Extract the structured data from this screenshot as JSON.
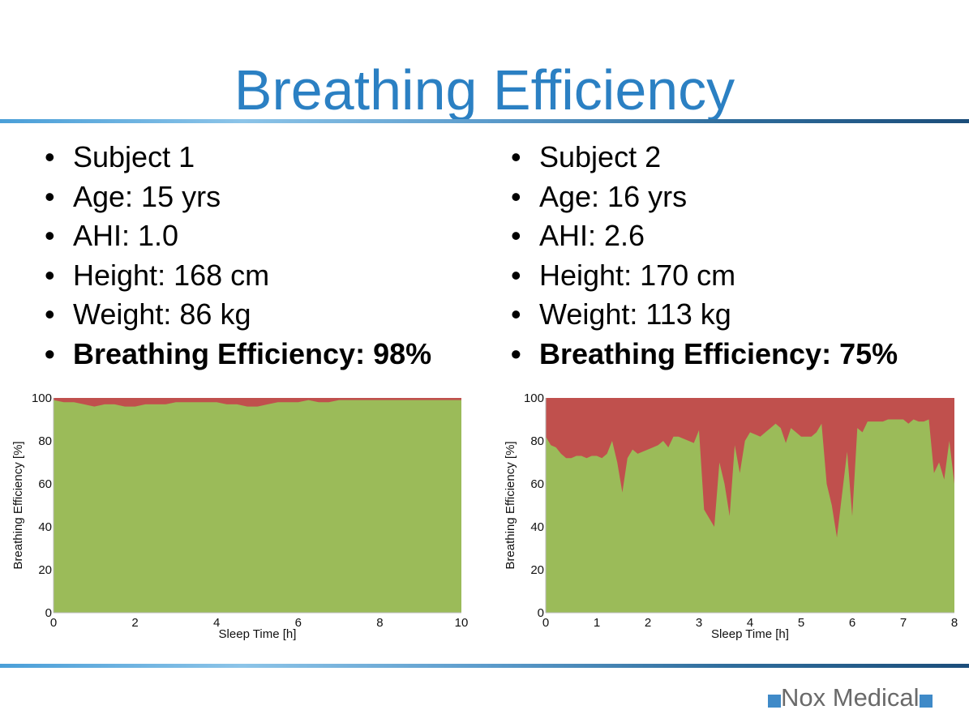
{
  "title": "Breathing Efficiency",
  "subjects": [
    {
      "items": [
        "Subject 1",
        "Age: 15 yrs",
        "AHI: 1.0",
        "Height: 168 cm",
        "Weight: 86 kg"
      ],
      "highlight": "Breathing Efficiency: 98%"
    },
    {
      "items": [
        "Subject 2",
        "Age: 16 yrs",
        "AHI: 2.6",
        "Height: 170 cm",
        "Weight: 113 kg"
      ],
      "highlight": "Breathing Efficiency: 75%"
    }
  ],
  "logo": "Nox Medical",
  "colors": {
    "efficient": "#9bbb59",
    "inefficient": "#c0504d",
    "title": "#2b80c3"
  },
  "chart_data": [
    {
      "type": "area",
      "xlabel": "Sleep Time [h]",
      "ylabel": "Breathing Efficiency [%]",
      "xlim": [
        0,
        10
      ],
      "ylim": [
        0,
        100
      ],
      "xticks": [
        0,
        2,
        4,
        6,
        8,
        10
      ],
      "yticks": [
        0,
        20,
        40,
        60,
        80,
        100
      ],
      "x_step": 0.25,
      "values": [
        99,
        98,
        98,
        97,
        96,
        97,
        97,
        96,
        96,
        97,
        97,
        97,
        98,
        98,
        98,
        98,
        98,
        97,
        97,
        96,
        96,
        97,
        98,
        98,
        98,
        99,
        98,
        98,
        99,
        99,
        99,
        99,
        99,
        99,
        99,
        99,
        99,
        99,
        99,
        99,
        99
      ],
      "series": [
        {
          "name": "efficient",
          "color": "#9bbb59"
        },
        {
          "name": "inefficient",
          "color": "#c0504d"
        }
      ]
    },
    {
      "type": "area",
      "xlabel": "Sleep Time [h]",
      "ylabel": "Breathing Efficiency [%]",
      "xlim": [
        0,
        8
      ],
      "ylim": [
        0,
        100
      ],
      "xticks": [
        0,
        1,
        2,
        3,
        4,
        5,
        6,
        7,
        8
      ],
      "yticks": [
        0,
        20,
        40,
        60,
        80,
        100
      ],
      "x_step": 0.1,
      "values": [
        82,
        78,
        77,
        74,
        72,
        72,
        73,
        73,
        72,
        73,
        73,
        72,
        74,
        80,
        70,
        56,
        72,
        76,
        74,
        75,
        76,
        77,
        78,
        80,
        77,
        82,
        82,
        81,
        80,
        79,
        85,
        48,
        44,
        40,
        70,
        60,
        45,
        78,
        65,
        80,
        84,
        83,
        82,
        84,
        86,
        88,
        86,
        79,
        86,
        84,
        82,
        82,
        82,
        84,
        88,
        60,
        50,
        35,
        55,
        75,
        45,
        86,
        84,
        89,
        89,
        89,
        89,
        90,
        90,
        90,
        90,
        88,
        90,
        89,
        89,
        90,
        65,
        70,
        62,
        80,
        60
      ],
      "series": [
        {
          "name": "efficient",
          "color": "#9bbb59"
        },
        {
          "name": "inefficient",
          "color": "#c0504d"
        }
      ]
    }
  ]
}
